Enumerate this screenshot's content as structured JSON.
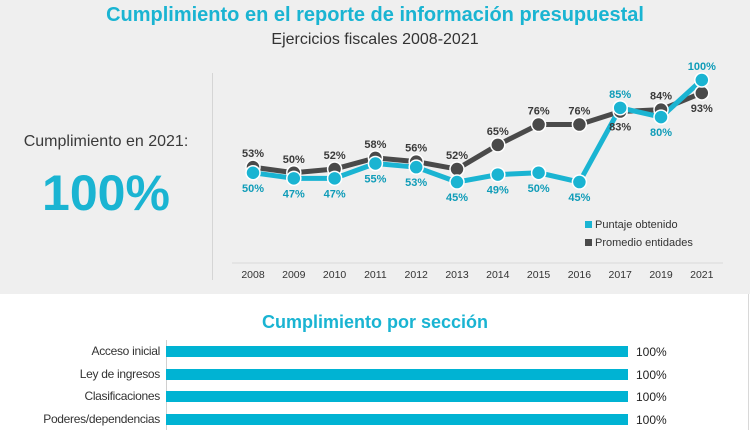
{
  "header": {
    "title": "Cumplimiento en el reporte de información presupuestal",
    "subtitle": "Ejercicios fiscales 2008-2021"
  },
  "kpi": {
    "label": "Cumplimiento en 2021:",
    "value": "100%"
  },
  "colors": {
    "accent": "#1ab4d2",
    "series_puntaje": "#1ab4d2",
    "series_promedio": "#4a4a4a",
    "panel_bg": "#efefef"
  },
  "chart_data": [
    {
      "type": "line",
      "title": "Cumplimiento en el reporte de información presupuestal",
      "subtitle": "Ejercicios fiscales 2008-2021",
      "xlabel": "",
      "ylabel": "",
      "categories": [
        "2008",
        "2009",
        "2010",
        "2011",
        "2012",
        "2013",
        "2014",
        "2015",
        "2016",
        "2017",
        "2019",
        "2021"
      ],
      "series": [
        {
          "name": "Puntaje obtenido",
          "color": "#1ab4d2",
          "values": [
            50,
            47,
            47,
            55,
            53,
            45,
            49,
            50,
            45,
            85,
            80,
            100
          ],
          "labels": [
            "50%",
            "47%",
            "47%",
            "55%",
            "53%",
            "45%",
            "49%",
            "50%",
            "45%",
            "85%",
            "80%",
            "100%"
          ]
        },
        {
          "name": "Promedio entidades",
          "color": "#4a4a4a",
          "values": [
            53,
            50,
            52,
            58,
            56,
            52,
            65,
            76,
            76,
            83,
            84,
            93
          ],
          "labels": [
            "53%",
            "50%",
            "52%",
            "58%",
            "56%",
            "52%",
            "65%",
            "76%",
            "76%",
            "83%",
            "84%",
            "93%"
          ]
        }
      ],
      "ylim": [
        40,
        100
      ],
      "grid": false,
      "legend": {
        "placement": "bottom-right",
        "entries": [
          "Puntaje obtenido",
          "Promedio entidades"
        ]
      }
    },
    {
      "type": "bar",
      "orientation": "horizontal",
      "title": "Cumplimiento por sección",
      "categories": [
        "Acceso inicial",
        "Ley de ingresos",
        "Clasificaciones",
        "Poderes/dependencias"
      ],
      "values": [
        100,
        100,
        100,
        100
      ],
      "labels": [
        "100%",
        "100%",
        "100%",
        "100%"
      ],
      "xlim": [
        0,
        100
      ],
      "color": "#00b3d3"
    }
  ]
}
